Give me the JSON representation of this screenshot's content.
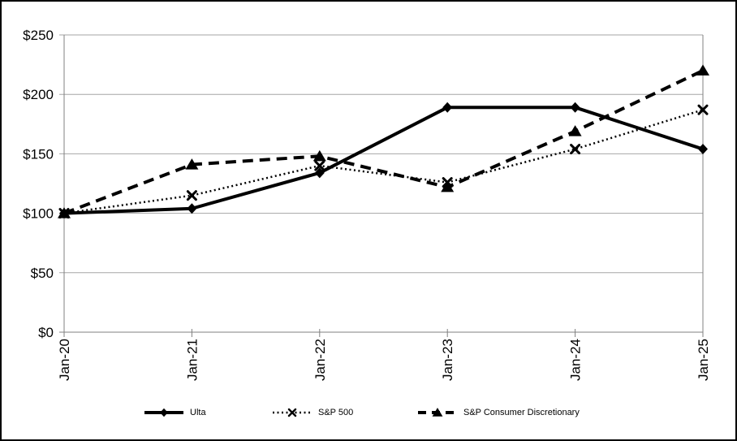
{
  "chart_data": {
    "type": "line",
    "x": [
      "Jan-20",
      "Jan-21",
      "Jan-22",
      "Jan-23",
      "Jan-24",
      "Jan-25"
    ],
    "series": [
      {
        "name": "Ulta",
        "style": "solid",
        "marker": "diamond",
        "values": [
          100,
          104,
          134,
          189,
          189,
          154
        ]
      },
      {
        "name": "S&P 500",
        "style": "dotted",
        "marker": "x",
        "values": [
          100,
          115,
          140,
          126,
          154,
          187
        ]
      },
      {
        "name": "S&P Consumer Discretionary",
        "style": "dashed",
        "marker": "triangle",
        "values": [
          100,
          141,
          148,
          122,
          169,
          220
        ]
      }
    ],
    "title": "",
    "xlabel": "",
    "ylabel": "",
    "ylim": [
      0,
      250
    ],
    "ytick_interval": 50,
    "ytick_labels": [
      "$0",
      "$50",
      "$100",
      "$150",
      "$200",
      "$250"
    ],
    "grid": "horizontal",
    "legend_position": "bottom",
    "colors": {
      "series": "#000000",
      "gridline": "#a6a6a6",
      "axis": "#808080",
      "frame": "#000000",
      "background": "#ffffff"
    }
  }
}
